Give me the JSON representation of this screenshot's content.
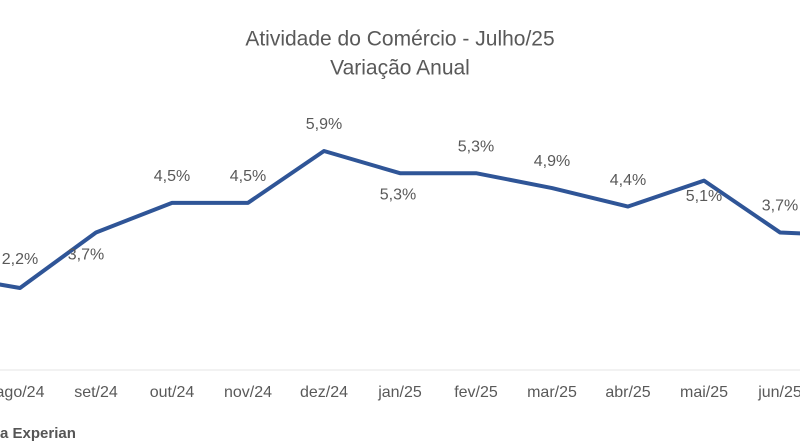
{
  "chart_data": {
    "type": "line",
    "title": "Atividade do Comércio - Julho/25",
    "subtitle": "Variação Anual",
    "source": "a Experian",
    "categories": [
      null,
      "ago/24",
      "set/24",
      "out/24",
      "nov/24",
      "dez/24",
      "jan/25",
      "fev/25",
      "mar/25",
      "abr/25",
      "mai/25",
      "jun/25",
      null
    ],
    "series": [
      {
        "name": "Variação Anual",
        "color": "#2f5597",
        "values": [
          2.55,
          2.2,
          3.7,
          4.5,
          4.5,
          5.9,
          5.3,
          5.3,
          4.9,
          4.4,
          5.1,
          3.7,
          3.6
        ],
        "value_labels": [
          null,
          "2,2%",
          "3,7%",
          "4,5%",
          "4,5%",
          "5,9%",
          "5,3%",
          "5,3%",
          "4,9%",
          "4,4%",
          "5,1%",
          "3,7%",
          null
        ]
      }
    ]
  }
}
